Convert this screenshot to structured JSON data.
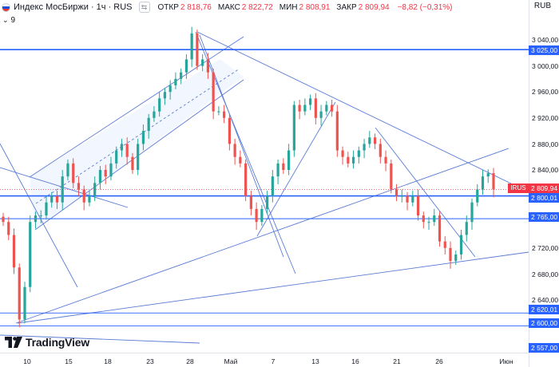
{
  "header": {
    "title": "Индекс МосБиржи · 1ч · RUS",
    "open_label": "ОТКР",
    "open_value": "2 818,76",
    "high_label": "МАКС",
    "high_value": "2 822,72",
    "low_label": "МИН",
    "low_value": "2 808,91",
    "close_label": "ЗАКР",
    "close_value": "2 809,94",
    "change_value": "−8,82 (−0,31%)",
    "indicator_count": "9",
    "currency": "RUB"
  },
  "price_axis": {
    "ticks": [
      "3 040,00",
      "3 000,00",
      "2 960,00",
      "2 920,00",
      "2 880,00",
      "2 840,00",
      "2 720,00",
      "2 680,00",
      "2 640,00"
    ],
    "levels": [
      "3 025,00",
      "2 800,01",
      "2 765,00",
      "2 620,01",
      "2 600,00",
      "2 557,00"
    ],
    "current_price": "2 809,94",
    "ticker_tag": "IRUS"
  },
  "time_axis": {
    "ticks": [
      "10",
      "15",
      "18",
      "23",
      "28",
      "Май",
      "7",
      "13",
      "16",
      "21",
      "26",
      "Июн"
    ]
  },
  "branding": {
    "logo_text": "TradingView"
  },
  "colors": {
    "up": "#26a69a",
    "down": "#ef5350",
    "line": "#2962ff",
    "trend": "#5b7cd6",
    "label_bg": "#2962ff",
    "current_bg": "#f23645"
  },
  "chart_data": {
    "type": "candlestick",
    "interval": "1h",
    "y_range": [
      2545,
      3060
    ],
    "horizontal_levels": [
      3025.0,
      2800.01,
      2765.0,
      2620.01,
      2600.0,
      2557.0
    ],
    "last_price": 2809.94,
    "approx_close_path": [
      2760,
      2740,
      2690,
      2610,
      2660,
      2760,
      2770,
      2770,
      2790,
      2800,
      2790,
      2830,
      2850,
      2820,
      2810,
      2790,
      2800,
      2820,
      2840,
      2830,
      2850,
      2870,
      2880,
      2860,
      2840,
      2880,
      2900,
      2920,
      2930,
      2950,
      2960,
      2970,
      2980,
      2990,
      3010,
      3050,
      3000,
      3010,
      2990,
      2930,
      2930,
      2920,
      2880,
      2860,
      2850,
      2800,
      2780,
      2760,
      2780,
      2800,
      2830,
      2850,
      2840,
      2870,
      2940,
      2930,
      2940,
      2950,
      2920,
      2930,
      2940,
      2930,
      2870,
      2860,
      2850,
      2860,
      2870,
      2880,
      2890,
      2880,
      2860,
      2850,
      2810,
      2800,
      2800,
      2790,
      2800,
      2770,
      2760,
      2760,
      2770,
      2730,
      2720,
      2700,
      2710,
      2740,
      2760,
      2790,
      2810,
      2830,
      2835,
      2810
    ]
  }
}
